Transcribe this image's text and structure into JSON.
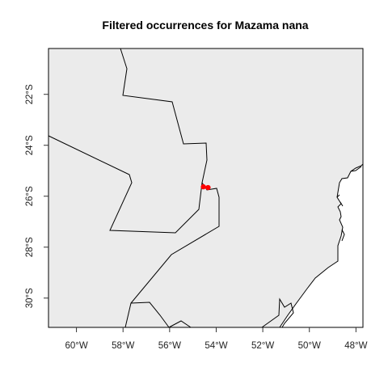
{
  "chart_data": {
    "type": "scatter",
    "title": "Filtered occurrences for Mazama nana",
    "xlabel": "",
    "ylabel": "",
    "xlim": [
      -61.2,
      -47.7
    ],
    "ylim": [
      -31.15,
      -20.2
    ],
    "x_ticks": [
      {
        "value": -60,
        "label": "60°W"
      },
      {
        "value": -58,
        "label": "58°W"
      },
      {
        "value": -56,
        "label": "56°W"
      },
      {
        "value": -54,
        "label": "54°W"
      },
      {
        "value": -52,
        "label": "52°W"
      },
      {
        "value": -50,
        "label": "50°W"
      },
      {
        "value": -48,
        "label": "48°W"
      }
    ],
    "y_ticks": [
      {
        "value": -22,
        "label": "22°S"
      },
      {
        "value": -24,
        "label": "24°S"
      },
      {
        "value": -26,
        "label": "26°S"
      },
      {
        "value": -28,
        "label": "28°S"
      },
      {
        "value": -30,
        "label": "30°S"
      }
    ],
    "series": [
      {
        "color": "#ff0000",
        "points": [
          {
            "x": -54.55,
            "y": -25.63
          },
          {
            "x": -54.35,
            "y": -25.66
          }
        ]
      }
    ],
    "grid": false,
    "land_color": "#ebebeb",
    "sea_color": "#ffffff"
  }
}
